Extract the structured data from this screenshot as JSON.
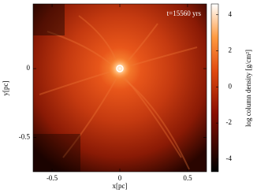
{
  "chart_data": {
    "type": "image",
    "annotation": "t=15560 yrs",
    "x_label": "x[pc]",
    "y_label": "y[pc]",
    "colorbar_label": "log column density [g/cm²]",
    "xlim": [
      -0.64,
      0.64
    ],
    "xticks": [
      -0.5,
      0,
      0.5
    ],
    "ylim": [
      -0.75,
      0.47
    ],
    "yticks": [
      -0.5,
      0
    ],
    "clim": [
      -4.7,
      4.6
    ],
    "cticks": [
      -4,
      -2,
      0,
      2,
      4
    ]
  }
}
